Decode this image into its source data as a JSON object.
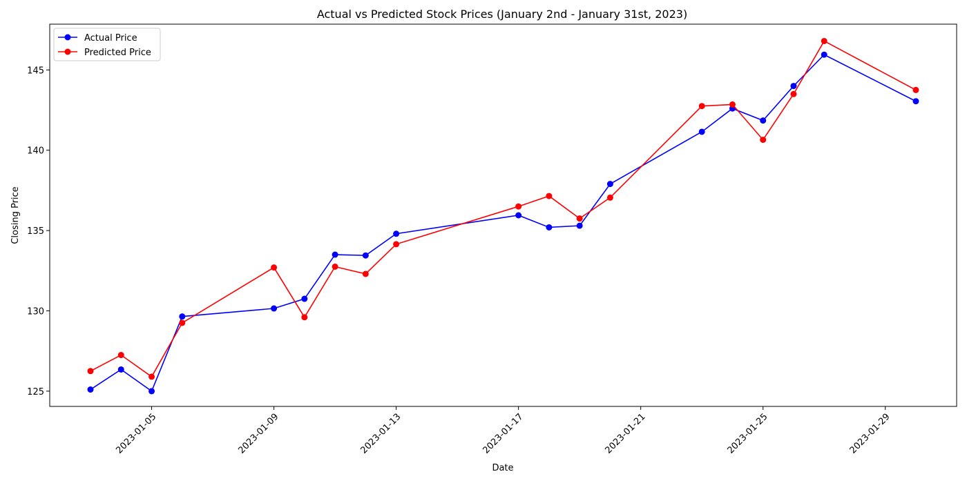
{
  "chart_data": {
    "type": "line",
    "title": "Actual vs Predicted Stock Prices (January 2nd - January 31st, 2023)",
    "xlabel": "Date",
    "ylabel": "Closing Price",
    "x": [
      "2023-01-03",
      "2023-01-04",
      "2023-01-05",
      "2023-01-06",
      "2023-01-09",
      "2023-01-10",
      "2023-01-11",
      "2023-01-12",
      "2023-01-13",
      "2023-01-17",
      "2023-01-18",
      "2023-01-19",
      "2023-01-20",
      "2023-01-23",
      "2023-01-24",
      "2023-01-25",
      "2023-01-26",
      "2023-01-27",
      "2023-01-30"
    ],
    "xlim": [
      "2023-01-01T16:00",
      "2023-01-31T08:00"
    ],
    "ylim": [
      124.05,
      147.85
    ],
    "x_ticks": [
      "2023-01-05",
      "2023-01-09",
      "2023-01-13",
      "2023-01-17",
      "2023-01-21",
      "2023-01-25",
      "2023-01-29"
    ],
    "y_ticks": [
      125,
      130,
      135,
      140,
      145
    ],
    "grid": false,
    "legend_position": "upper left",
    "series": [
      {
        "name": "Actual Price",
        "color": "#0000ff",
        "marker": "circle",
        "values": [
          125.1,
          126.35,
          125.0,
          129.65,
          130.15,
          130.75,
          133.5,
          133.45,
          134.8,
          135.95,
          135.2,
          135.3,
          137.9,
          141.15,
          142.6,
          141.85,
          144.0,
          145.95,
          143.05
        ]
      },
      {
        "name": "Predicted Price",
        "color": "#ff0000",
        "marker": "circle",
        "values": [
          126.25,
          127.25,
          125.9,
          129.25,
          132.7,
          129.6,
          132.75,
          132.3,
          134.15,
          136.5,
          137.15,
          135.75,
          137.05,
          142.75,
          142.85,
          140.65,
          143.5,
          146.8,
          143.75
        ]
      }
    ]
  }
}
